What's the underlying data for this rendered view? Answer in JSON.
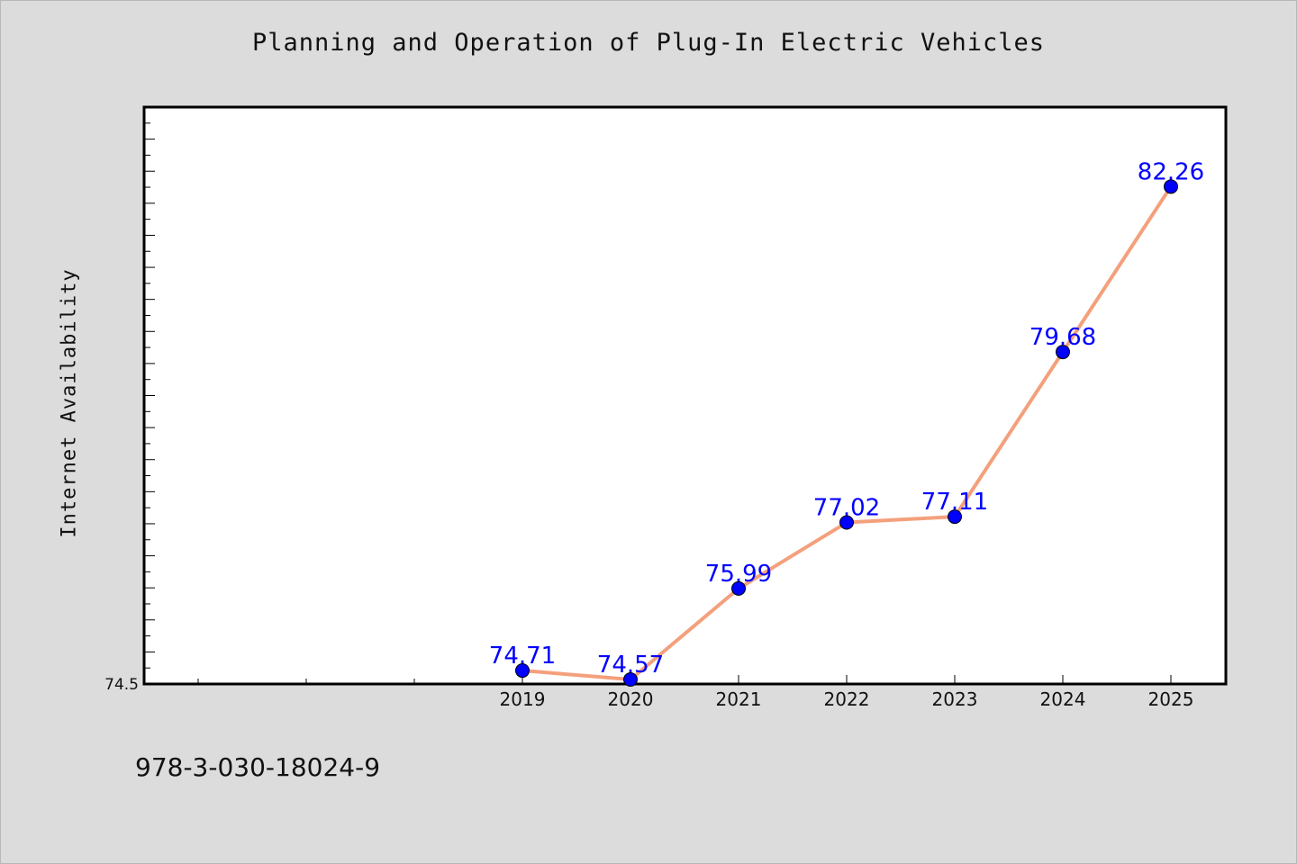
{
  "chart_data": {
    "type": "line",
    "title": "Planning and Operation of Plug-In Electric Vehicles",
    "ylabel": "Internet Availability",
    "xlabel": "",
    "x": [
      "2019",
      "2020",
      "2021",
      "2022",
      "2023",
      "2024",
      "2025"
    ],
    "series": [
      {
        "values": [
          74.71,
          74.57,
          75.99,
          77.02,
          77.11,
          79.68,
          82.26
        ],
        "labels": [
          "74.71",
          "74.57",
          "75.99",
          "77.02",
          "77.11",
          "79.68",
          "82.26"
        ]
      }
    ],
    "ylim": [
      74.5,
      83.5
    ],
    "y_tick_labels": [
      "74.5"
    ],
    "grid": false,
    "colors": {
      "line": "#f4a07c",
      "marker": "#0000ff",
      "data_label": "#0000ff"
    }
  },
  "footer_text": "978-3-030-18024-9"
}
